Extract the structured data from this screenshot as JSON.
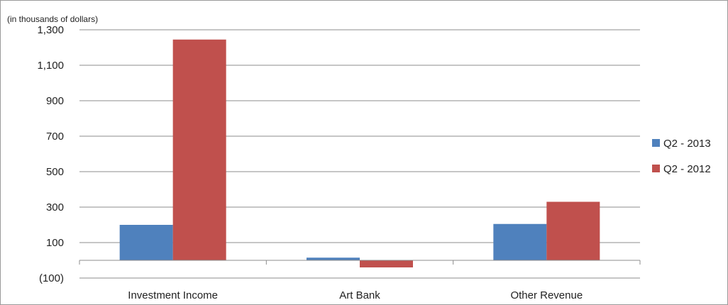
{
  "chart_data": {
    "type": "bar",
    "unit_label": "(in thousands of dollars)",
    "categories": [
      "Investment Income",
      "Art Bank",
      "Other Revenue"
    ],
    "series": [
      {
        "name": "Q2 - 2013",
        "color": "#4f81bd",
        "values": [
          200,
          15,
          205
        ]
      },
      {
        "name": "Q2 - 2012",
        "color": "#c0504d",
        "values": [
          1245,
          -40,
          330
        ]
      }
    ],
    "y_ticks": [
      -100,
      100,
      300,
      500,
      700,
      900,
      1100,
      1300
    ],
    "y_tick_labels": [
      "(100)",
      "100",
      "300",
      "500",
      "700",
      "900",
      "1,100",
      "1,300"
    ],
    "ylim": [
      -100,
      1300
    ],
    "grid": true,
    "legend_position": "right"
  }
}
